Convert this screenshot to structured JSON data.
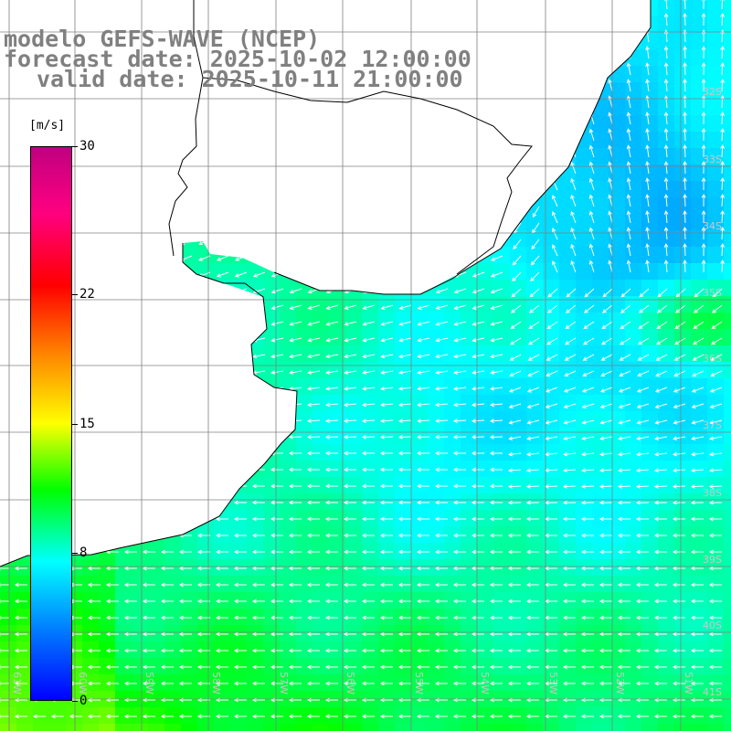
{
  "title": {
    "model": "modelo GEFS-WAVE (NCEP)",
    "forecast": "forecast date: 2025-10-02 12:00:00",
    "valid": "valid date: 2025-10-11 21:00:00"
  },
  "colorbar": {
    "units": "[m/s]",
    "min": 0,
    "max": 30,
    "ticks": [
      {
        "value": 30,
        "label": "30"
      },
      {
        "value": 22,
        "label": "22"
      },
      {
        "value": 15,
        "label": "15"
      },
      {
        "value": 8,
        "label": "8"
      },
      {
        "value": 0,
        "label": "0"
      }
    ],
    "colors": [
      "#0000ff",
      "#0080ff",
      "#00ffff",
      "#00ff00",
      "#ffff00",
      "#ff8000",
      "#ff0000",
      "#ff0080",
      "#c00080"
    ]
  },
  "map": {
    "lon_labels": [
      "61W",
      "60W",
      "59W",
      "58W",
      "57W",
      "56W",
      "55W",
      "54W",
      "53W",
      "52W",
      "51W"
    ],
    "lat_labels": [
      "32S",
      "33S",
      "34S",
      "35S",
      "36S",
      "37S",
      "38S",
      "39S",
      "40S",
      "41S"
    ],
    "land_color": "#ffffff",
    "grid_color": "#808080",
    "arrow_color": "#ffffff"
  }
}
